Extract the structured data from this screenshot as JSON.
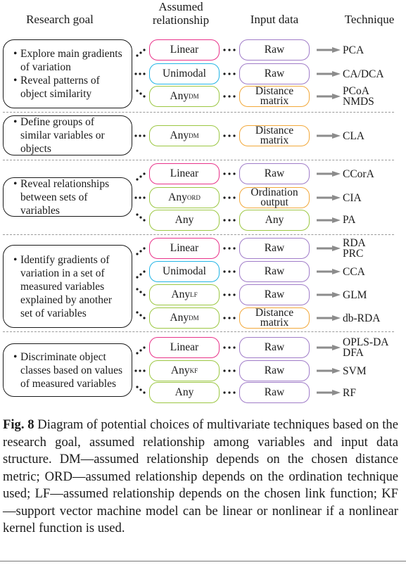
{
  "headers": {
    "goal": "Research goal",
    "relationship": "Assumed relationship",
    "input": "Input data",
    "technique": "Technique"
  },
  "colors": {
    "linear": "#e8338a",
    "unimodal": "#23b4e5",
    "any": "#9cc743",
    "raw": "#a07cc8",
    "matrix": "#f2a83a",
    "arrow": "#8c8c8c"
  },
  "groups": [
    {
      "goals": [
        "Explore main gradients of variation",
        "Reveal patterns of object similarity"
      ],
      "rows": [
        {
          "rel": "Linear",
          "rel_sup": "",
          "input": "Raw",
          "tech": "PCA"
        },
        {
          "rel": "Unimodal",
          "rel_sup": "",
          "input": "Raw",
          "tech": "CA/DCA"
        },
        {
          "rel": "Any",
          "rel_sup": "DM",
          "input": "Distance matrix",
          "tech": "PCoA NMDS"
        }
      ]
    },
    {
      "goals": [
        "Define groups of similar variables or objects"
      ],
      "rows": [
        {
          "rel": "Any",
          "rel_sup": "DM",
          "input": "Distance matrix",
          "tech": "CLA"
        }
      ]
    },
    {
      "goals": [
        "Reveal relationships between sets of variables"
      ],
      "rows": [
        {
          "rel": "Linear",
          "rel_sup": "",
          "input": "Raw",
          "tech": "CCorA"
        },
        {
          "rel": "Any",
          "rel_sup": "ORD",
          "input": "Ordination output",
          "tech": "CIA"
        },
        {
          "rel": "Any",
          "rel_sup": "",
          "input": "Any",
          "tech": "PA"
        }
      ]
    },
    {
      "goals": [
        "Identify gradients of variation in a set of measured variables explained by another set of variables"
      ],
      "rows": [
        {
          "rel": "Linear",
          "rel_sup": "",
          "input": "Raw",
          "tech": "RDA PRC"
        },
        {
          "rel": "Unimodal",
          "rel_sup": "",
          "input": "Raw",
          "tech": "CCA"
        },
        {
          "rel": "Any",
          "rel_sup": "LF",
          "input": "Raw",
          "tech": "GLM"
        },
        {
          "rel": "Any",
          "rel_sup": "DM",
          "input": "Distance matrix",
          "tech": "db-RDA"
        }
      ]
    },
    {
      "goals": [
        "Discriminate object classes based on values of measured variables"
      ],
      "rows": [
        {
          "rel": "Linear",
          "rel_sup": "",
          "input": "Raw",
          "tech": "OPLS-DA DFA"
        },
        {
          "rel": "Any",
          "rel_sup": "KF",
          "input": "Raw",
          "tech": "SVM"
        },
        {
          "rel": "Any",
          "rel_sup": "",
          "input": "Raw",
          "tech": "RF"
        }
      ]
    }
  ],
  "caption": {
    "label": "Fig. 8",
    "text": "Diagram of potential choices of multivariate techniques based on the research goal, assumed relationship among variables and input data structure. DM—assumed relationship depends on the chosen distance metric; ORD—assumed relationship depends on the ordination technique used; LF—assumed relationship depends on the chosen link function; KF—support vector machine model can be linear or nonlinear if a nonlinear kernel function is used."
  }
}
